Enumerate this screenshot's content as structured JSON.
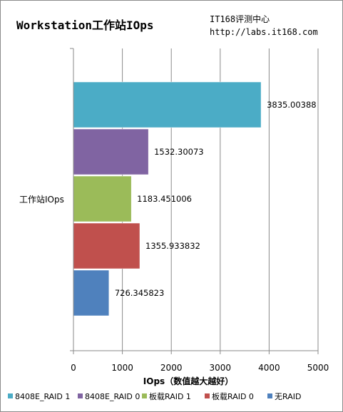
{
  "chart_data": {
    "type": "bar",
    "orientation": "horizontal",
    "title": "Workstation工作站IOps",
    "subtitle": [
      "IT168评测中心",
      "http://labs.it168.com"
    ],
    "categories": [
      "工作站IOps"
    ],
    "xlabel": "IOps（数值越大越好）",
    "ylabel": "",
    "xlim": [
      0,
      5000
    ],
    "xticks": [
      0,
      1000,
      2000,
      3000,
      4000,
      5000
    ],
    "grid": true,
    "legend_position": "bottom",
    "series": [
      {
        "name": "8408E_RAID 1",
        "values": [
          3835.00388
        ],
        "label": "3835.00388",
        "color": "#4BACC6"
      },
      {
        "name": "8408E_RAID 0",
        "values": [
          1532.30073
        ],
        "label": "1532.30073",
        "color": "#8064A2"
      },
      {
        "name": "板载RAID 1",
        "values": [
          1183.451006
        ],
        "label": "1183.451006",
        "color": "#9BBB59"
      },
      {
        "name": "板载RAID 0",
        "values": [
          1355.933832
        ],
        "label": "1355.933832",
        "color": "#C0504D"
      },
      {
        "name": "无RAID",
        "values": [
          726.345823
        ],
        "label": "726.345823",
        "color": "#4F81BD"
      }
    ]
  }
}
